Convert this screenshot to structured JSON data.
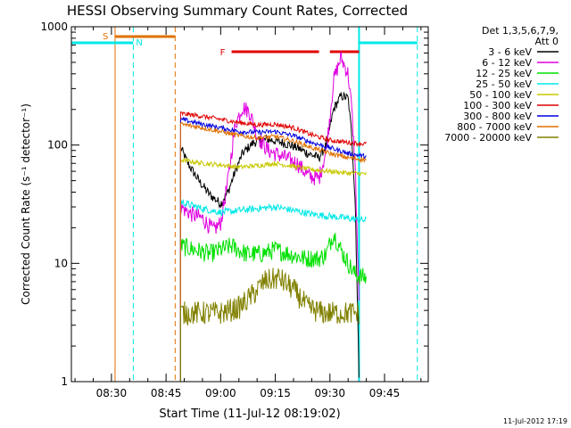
{
  "chart_data": {
    "type": "line",
    "title": "HESSI Observing Summary Count Rates, Corrected",
    "xlabel": "Start Time (11-Jul-12 08:19:02)",
    "ylabel": "Corrected Count Rate (s⁻¹ detector⁻¹)",
    "y_scale": "log",
    "ylim": [
      1,
      1000
    ],
    "xlim": [
      "08:19",
      "09:57"
    ],
    "x_ticks": [
      "08:30",
      "08:45",
      "09:00",
      "09:15",
      "09:30",
      "09:45"
    ],
    "y_ticks": [
      "1",
      "10",
      "100",
      "1000"
    ],
    "footer": "11-Jul-2012 17:19",
    "legend": {
      "position": "right",
      "header_lines": [
        "Det 1,3,5,6,7,9,",
        "Att 0"
      ],
      "entries": [
        {
          "label": "3 - 6 keV",
          "color": "#000000"
        },
        {
          "label": "6 - 12 keV",
          "color": "#e000e0"
        },
        {
          "label": "12 - 25 keV",
          "color": "#00e000"
        },
        {
          "label": "25 - 50 keV",
          "color": "#00e8e8"
        },
        {
          "label": "50 - 100 keV",
          "color": "#c8c800"
        },
        {
          "label": "100 - 300 keV",
          "color": "#e00000"
        },
        {
          "label": "300 - 800 keV",
          "color": "#0000e0"
        },
        {
          "label": "800 - 7000 keV",
          "color": "#e07000"
        },
        {
          "label": "7000 - 20000 keV",
          "color": "#808000"
        }
      ]
    },
    "markers": {
      "orange_vlines": [
        "08:31",
        "08:47.5"
      ],
      "cyan_vlines": [
        "08:36",
        "09:38",
        "09:54"
      ],
      "saa_label": "S",
      "night_label": "N",
      "flare_label": "F",
      "saa_interval": [
        "08:31",
        "08:47.5"
      ],
      "night_intervals": [
        [
          "08:19",
          "08:36"
        ],
        [
          "09:38",
          "09:54"
        ]
      ],
      "flare_intervals": [
        [
          "09:03",
          "09:27"
        ],
        [
          "09:30",
          "09:38"
        ]
      ]
    },
    "series": [
      {
        "name": "3 - 6 keV",
        "color": "#000000",
        "noise": 0.04,
        "points": [
          [
            "08:49",
            95
          ],
          [
            "08:51",
            70
          ],
          [
            "08:54",
            50
          ],
          [
            "08:57",
            38
          ],
          [
            "09:00",
            32
          ],
          [
            "09:02",
            40
          ],
          [
            "09:04",
            60
          ],
          [
            "09:06",
            85
          ],
          [
            "09:09",
            105
          ],
          [
            "09:13",
            112
          ],
          [
            "09:17",
            105
          ],
          [
            "09:21",
            95
          ],
          [
            "09:24",
            85
          ],
          [
            "09:27",
            78
          ],
          [
            "09:29",
            100
          ],
          [
            "09:31",
            200
          ],
          [
            "09:33",
            260
          ],
          [
            "09:35",
            250
          ],
          [
            "09:36",
            120
          ],
          [
            "09:37",
            30
          ],
          [
            "09:38",
            1
          ]
        ]
      },
      {
        "name": "6 - 12 keV",
        "color": "#e000e0",
        "noise": 0.07,
        "points": [
          [
            "08:49",
            30
          ],
          [
            "08:52",
            26
          ],
          [
            "08:55",
            24
          ],
          [
            "08:58",
            19
          ],
          [
            "09:00",
            22
          ],
          [
            "09:02",
            50
          ],
          [
            "09:04",
            150
          ],
          [
            "09:06",
            210
          ],
          [
            "09:08",
            190
          ],
          [
            "09:10",
            120
          ],
          [
            "09:13",
            90
          ],
          [
            "09:17",
            80
          ],
          [
            "09:21",
            70
          ],
          [
            "09:24",
            55
          ],
          [
            "09:27",
            52
          ],
          [
            "09:29",
            90
          ],
          [
            "09:31",
            350
          ],
          [
            "09:33",
            550
          ],
          [
            "09:35",
            400
          ],
          [
            "09:36",
            200
          ],
          [
            "09:37",
            60
          ],
          [
            "09:38",
            4.2
          ]
        ]
      },
      {
        "name": "12 - 25 keV",
        "color": "#00e000",
        "noise": 0.08,
        "points": [
          [
            "08:49",
            14
          ],
          [
            "08:53",
            13
          ],
          [
            "08:57",
            12
          ],
          [
            "09:00",
            13
          ],
          [
            "09:03",
            14
          ],
          [
            "09:07",
            12
          ],
          [
            "09:11",
            12
          ],
          [
            "09:15",
            13
          ],
          [
            "09:19",
            12
          ],
          [
            "09:23",
            11
          ],
          [
            "09:27",
            11
          ],
          [
            "09:29",
            12
          ],
          [
            "09:31",
            18
          ],
          [
            "09:33",
            13
          ],
          [
            "09:35",
            10
          ],
          [
            "09:37",
            8
          ],
          [
            "09:40",
            7.5
          ]
        ]
      },
      {
        "name": "25 - 50 keV",
        "color": "#00e8e8",
        "noise": 0.03,
        "points": [
          [
            "08:49",
            33
          ],
          [
            "08:55",
            29
          ],
          [
            "09:00",
            27
          ],
          [
            "09:05",
            28
          ],
          [
            "09:10",
            29
          ],
          [
            "09:15",
            30
          ],
          [
            "09:20",
            28
          ],
          [
            "09:25",
            26
          ],
          [
            "09:30",
            25
          ],
          [
            "09:35",
            24
          ],
          [
            "09:40",
            23
          ]
        ]
      },
      {
        "name": "50 - 100 keV",
        "color": "#c8c800",
        "noise": 0.02,
        "points": [
          [
            "08:49",
            75
          ],
          [
            "08:55",
            70
          ],
          [
            "09:00",
            68
          ],
          [
            "09:05",
            65
          ],
          [
            "09:10",
            67
          ],
          [
            "09:15",
            70
          ],
          [
            "09:20",
            66
          ],
          [
            "09:25",
            62
          ],
          [
            "09:30",
            60
          ],
          [
            "09:35",
            58
          ],
          [
            "09:40",
            57
          ]
        ]
      },
      {
        "name": "100 - 300 keV",
        "color": "#e00000",
        "noise": 0.02,
        "points": [
          [
            "08:49",
            185
          ],
          [
            "08:55",
            175
          ],
          [
            "09:00",
            165
          ],
          [
            "09:05",
            155
          ],
          [
            "09:10",
            148
          ],
          [
            "09:15",
            150
          ],
          [
            "09:20",
            140
          ],
          [
            "09:25",
            122
          ],
          [
            "09:30",
            110
          ],
          [
            "09:35",
            105
          ],
          [
            "09:40",
            102
          ]
        ]
      },
      {
        "name": "300 - 800 keV",
        "color": "#0000e0",
        "noise": 0.02,
        "points": [
          [
            "08:49",
            165
          ],
          [
            "08:55",
            150
          ],
          [
            "09:00",
            140
          ],
          [
            "09:05",
            130
          ],
          [
            "09:10",
            128
          ],
          [
            "09:15",
            130
          ],
          [
            "09:20",
            120
          ],
          [
            "09:25",
            105
          ],
          [
            "09:30",
            95
          ],
          [
            "09:35",
            85
          ],
          [
            "09:40",
            80
          ]
        ]
      },
      {
        "name": "800 - 7000 keV",
        "color": "#e07000",
        "noise": 0.02,
        "points": [
          [
            "08:49",
            150
          ],
          [
            "08:55",
            140
          ],
          [
            "09:00",
            130
          ],
          [
            "09:05",
            120
          ],
          [
            "09:10",
            115
          ],
          [
            "09:15",
            118
          ],
          [
            "09:20",
            108
          ],
          [
            "09:25",
            95
          ],
          [
            "09:30",
            85
          ],
          [
            "09:35",
            78
          ],
          [
            "09:40",
            75
          ]
        ]
      },
      {
        "name": "7000 - 20000 keV",
        "color": "#808000",
        "noise": 0.1,
        "points": [
          [
            "08:49",
            3.8
          ],
          [
            "08:55",
            3.8
          ],
          [
            "09:00",
            3.8
          ],
          [
            "09:05",
            4.2
          ],
          [
            "09:09",
            5.5
          ],
          [
            "09:12",
            7
          ],
          [
            "09:16",
            7.5
          ],
          [
            "09:20",
            6
          ],
          [
            "09:24",
            4.2
          ],
          [
            "09:28",
            3.8
          ],
          [
            "09:33",
            3.8
          ],
          [
            "09:38",
            3.8
          ]
        ]
      }
    ]
  }
}
